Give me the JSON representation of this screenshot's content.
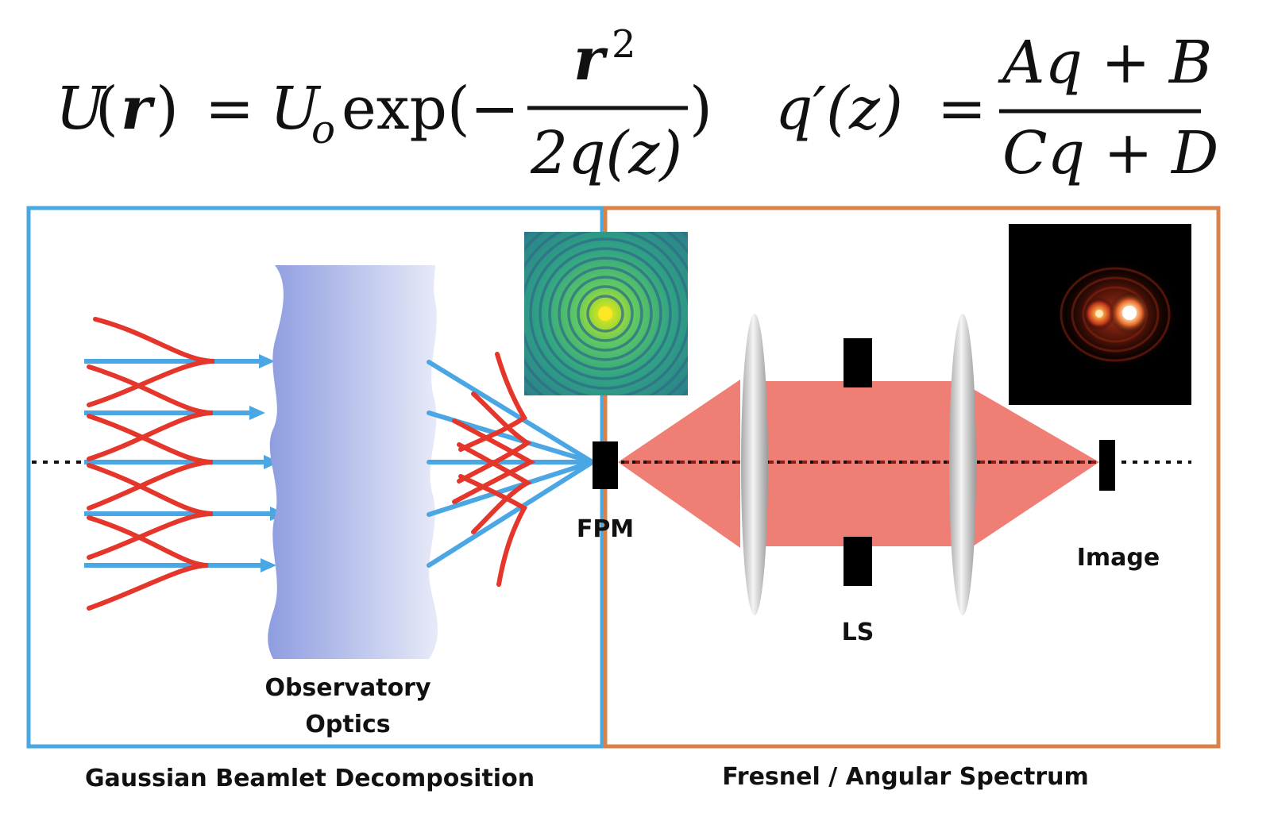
{
  "equations": {
    "gaussian": {
      "lhs_U": "U",
      "lhs_paren_open": "(",
      "lhs_r": "r",
      "lhs_paren_close": ")",
      "equals": "=",
      "amp": "U",
      "amp_sub": "o",
      "exp": "exp(−",
      "numerator_r": "r",
      "numerator_exp": "2",
      "denominator": "2q(z)",
      "close": ")"
    },
    "abcd": {
      "lhs": "q′(z)",
      "equals": "=",
      "numerator": "Aq + B",
      "denominator": "Cq + D"
    }
  },
  "labels": {
    "optics_line1": "Observatory",
    "optics_line2": "Optics",
    "fpm": "FPM",
    "ls": "LS",
    "image": "Image",
    "left_caption": "Gaussian Beamlet Decomposition",
    "right_caption": "Fresnel / Angular Spectrum"
  },
  "colors": {
    "left_box": "#4aa8e0",
    "right_box": "#d9834a",
    "beam": "#4ba6e4",
    "gaussian_curve": "#e5362b",
    "beam_cone": "#ef7f74",
    "lens": "#cfcfcf",
    "stop": "#000000",
    "optics_gradient_start": "#8f9ee0",
    "optics_gradient_end": "#e6e9f8"
  }
}
